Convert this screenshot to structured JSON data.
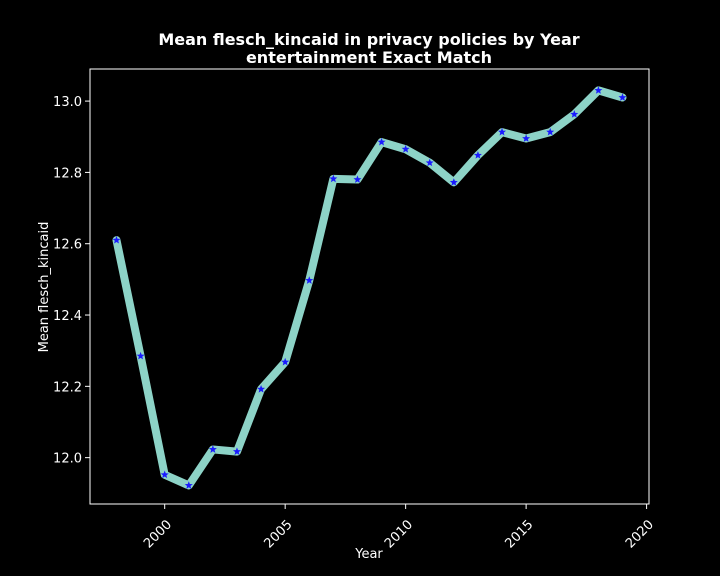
{
  "colors": {
    "background": "#000000",
    "foreground": "#ffffff",
    "line": "#8dd3c7",
    "marker": "#1a1aff"
  },
  "chart_data": {
    "type": "line",
    "title_line1": "Mean flesch_kincaid in privacy policies by Year",
    "title_line2": "entertainment Exact Match",
    "xlabel": "Year",
    "ylabel": "Mean flesch_kincaid",
    "xlim": [
      1996.9,
      2020.1
    ],
    "ylim": [
      11.87,
      13.09
    ],
    "xticks": [
      2000,
      2005,
      2010,
      2015,
      2020
    ],
    "yticks": [
      12.0,
      12.2,
      12.4,
      12.6,
      12.8,
      13.0
    ],
    "xtick_labels": [
      "2000",
      "2005",
      "2010",
      "2015",
      "2020"
    ],
    "ytick_labels": [
      "12.0",
      "12.2",
      "12.4",
      "12.6",
      "12.8",
      "13.0"
    ],
    "grid": false,
    "marker": "star",
    "series": [
      {
        "x": [
          1998,
          1999,
          2000,
          2001,
          2002,
          2003,
          2004,
          2005,
          2006,
          2007,
          2008,
          2009,
          2010,
          2011,
          2012,
          2013,
          2014,
          2015,
          2016,
          2017,
          2018,
          2019
        ],
        "values": [
          12.61,
          12.285,
          11.952,
          11.922,
          12.023,
          12.017,
          12.192,
          12.268,
          12.497,
          12.782,
          12.78,
          12.885,
          12.865,
          12.827,
          12.772,
          12.848,
          12.913,
          12.895,
          12.913,
          12.963,
          13.03,
          13.01
        ]
      }
    ]
  }
}
